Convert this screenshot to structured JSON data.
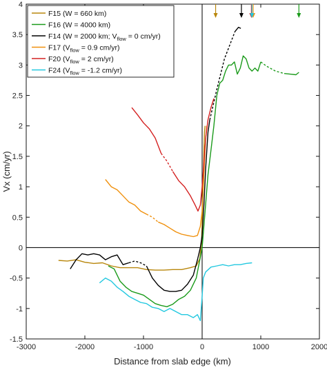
{
  "chart_data": {
    "type": "line",
    "title": "",
    "xlabel": "Distance from slab edge (km)",
    "ylabel": "Vx (cm/yr)",
    "xlim": [
      -3000,
      2000
    ],
    "ylim": [
      -1.5,
      4
    ],
    "xticks": [
      "-3000",
      "-2000",
      "-1000",
      "0",
      "1000",
      "2000"
    ],
    "yticks": [
      "-1.5",
      "-1",
      "-0.5",
      "0",
      "0.5",
      "1",
      "1.5",
      "2",
      "2.5",
      "3",
      "3.5",
      "4"
    ],
    "grid": false,
    "legend_position": "top-left",
    "series": [
      {
        "name": "F15 (W = 660 km)",
        "legend_main": "F15 (W = 660 km)",
        "legend_sub": "",
        "legend_tail": "",
        "color": "#b8860b",
        "points": [
          [
            -2450,
            -0.21
          ],
          [
            -2300,
            -0.22
          ],
          [
            -2150,
            -0.2
          ],
          [
            -2000,
            -0.24
          ],
          [
            -1850,
            -0.26
          ],
          [
            -1700,
            -0.25
          ],
          [
            -1550,
            -0.3
          ],
          [
            -1400,
            -0.33
          ],
          [
            -1250,
            -0.33
          ],
          [
            -1100,
            -0.33
          ],
          [
            -950,
            -0.36
          ],
          [
            -800,
            -0.37
          ],
          [
            -650,
            -0.37
          ],
          [
            -500,
            -0.36
          ],
          [
            -350,
            -0.36
          ],
          [
            -200,
            -0.33
          ],
          [
            -100,
            -0.3
          ],
          [
            -40,
            -0.18
          ],
          [
            -10,
            0.1
          ],
          [
            0,
            0.4
          ],
          [
            10,
            0.8
          ],
          [
            20,
            1.2
          ],
          [
            30,
            1.6
          ],
          [
            40,
            1.9
          ],
          [
            50,
            2.0
          ]
        ],
        "arrow_x": 230
      },
      {
        "name": "F16 (W = 4000 km)",
        "legend_main": "F16 (W = 4000 km)",
        "legend_sub": "",
        "legend_tail": "",
        "color": "#1a9a1a",
        "points": [
          [
            -1600,
            -0.3
          ],
          [
            -1500,
            -0.35
          ],
          [
            -1400,
            -0.55
          ],
          [
            -1300,
            -0.65
          ],
          [
            -1200,
            -0.72
          ],
          [
            -1100,
            -0.75
          ],
          [
            -1000,
            -0.78
          ],
          [
            -900,
            -0.85
          ],
          [
            -800,
            -0.92
          ],
          [
            -700,
            -0.95
          ],
          [
            -600,
            -0.97
          ],
          [
            -500,
            -0.93
          ],
          [
            -400,
            -0.85
          ],
          [
            -300,
            -0.8
          ],
          [
            -200,
            -0.7
          ],
          [
            -100,
            -0.5
          ],
          [
            -50,
            -0.25
          ],
          [
            0,
            0
          ],
          [
            50,
            0.6
          ],
          [
            100,
            1.2
          ],
          [
            150,
            1.6
          ],
          [
            200,
            2.0
          ],
          [
            250,
            2.5
          ],
          [
            300,
            2.7
          ],
          [
            350,
            2.75
          ],
          [
            400,
            2.9
          ],
          [
            450,
            3.0
          ],
          [
            500,
            3.0
          ],
          [
            550,
            3.05
          ],
          [
            600,
            2.85
          ],
          [
            650,
            2.95
          ],
          [
            700,
            3.15
          ],
          [
            750,
            3.1
          ],
          [
            800,
            2.95
          ],
          [
            850,
            2.9
          ],
          [
            900,
            2.95
          ],
          [
            950,
            2.9
          ],
          [
            1000,
            3.05
          ]
        ],
        "dashed": [
          [
            1000,
            3.05
          ],
          [
            1100,
            2.98
          ],
          [
            1250,
            2.9
          ],
          [
            1400,
            2.86
          ]
        ],
        "tail": [
          [
            1400,
            2.86
          ],
          [
            1500,
            2.85
          ],
          [
            1600,
            2.84
          ],
          [
            1650,
            2.88
          ]
        ],
        "arrow_x": 1650
      },
      {
        "name": "F14",
        "legend_main": "F14 (W = 2000 km; V",
        "legend_sub": "flow",
        "legend_tail": " = 0 cm/yr)",
        "color": "#000000",
        "points": [
          [
            -2250,
            -0.35
          ],
          [
            -2150,
            -0.2
          ],
          [
            -2050,
            -0.1
          ],
          [
            -1950,
            -0.12
          ],
          [
            -1850,
            -0.1
          ],
          [
            -1750,
            -0.12
          ],
          [
            -1650,
            -0.2
          ],
          [
            -1550,
            -0.15
          ],
          [
            -1450,
            -0.12
          ],
          [
            -1350,
            -0.28
          ],
          [
            -1250,
            -0.25
          ]
        ],
        "dashed": [
          [
            -1250,
            -0.25
          ],
          [
            -1150,
            -0.22
          ],
          [
            -1050,
            -0.25
          ],
          [
            -950,
            -0.3
          ]
        ],
        "tail": [
          [
            -950,
            -0.3
          ],
          [
            -850,
            -0.5
          ],
          [
            -750,
            -0.62
          ],
          [
            -650,
            -0.7
          ],
          [
            -550,
            -0.72
          ],
          [
            -450,
            -0.72
          ],
          [
            -350,
            -0.7
          ],
          [
            -250,
            -0.6
          ],
          [
            -150,
            -0.45
          ],
          [
            -80,
            -0.2
          ],
          [
            -30,
            0
          ],
          [
            0,
            0.2
          ],
          [
            30,
            0.7
          ],
          [
            60,
            1.3
          ],
          [
            100,
            1.9
          ],
          [
            130,
            2.1
          ]
        ],
        "extra_dashed": [
          [
            130,
            2.1
          ],
          [
            250,
            2.6
          ],
          [
            380,
            3.1
          ],
          [
            500,
            3.4
          ],
          [
            560,
            3.55
          ]
        ],
        "extra_tail": [
          [
            560,
            3.55
          ],
          [
            620,
            3.62
          ],
          [
            660,
            3.6
          ]
        ],
        "arrow_x": 670
      },
      {
        "name": "F17",
        "legend_main": "F17 (V",
        "legend_sub": "flow",
        "legend_tail": " = 0.9 cm/yr)",
        "color": "#f0900c",
        "points": [
          [
            -1650,
            1.12
          ],
          [
            -1550,
            1.0
          ],
          [
            -1450,
            0.95
          ],
          [
            -1350,
            0.85
          ],
          [
            -1250,
            0.75
          ],
          [
            -1150,
            0.7
          ],
          [
            -1050,
            0.6
          ],
          [
            -950,
            0.55
          ]
        ],
        "dashed": [
          [
            -950,
            0.55
          ],
          [
            -850,
            0.5
          ],
          [
            -750,
            0.42
          ]
        ],
        "tail": [
          [
            -750,
            0.42
          ],
          [
            -650,
            0.38
          ],
          [
            -550,
            0.32
          ],
          [
            -450,
            0.26
          ],
          [
            -350,
            0.22
          ],
          [
            -250,
            0.2
          ],
          [
            -150,
            0.18
          ],
          [
            -80,
            0.2
          ],
          [
            -30,
            0.35
          ],
          [
            0,
            0.6
          ],
          [
            20,
            1.0
          ],
          [
            40,
            1.4
          ],
          [
            60,
            1.8
          ],
          [
            80,
            2.0
          ]
        ],
        "arrow_x": 870
      },
      {
        "name": "F20",
        "legend_main": "F20 (V",
        "legend_sub": "flow",
        "legend_tail": " = 2 cm/yr)",
        "color": "#d42020",
        "points": [
          [
            -1200,
            2.3
          ],
          [
            -1100,
            2.18
          ],
          [
            -1000,
            2.05
          ],
          [
            -900,
            1.95
          ],
          [
            -800,
            1.8
          ],
          [
            -700,
            1.55
          ]
        ],
        "dashed": [
          [
            -700,
            1.55
          ],
          [
            -600,
            1.42
          ],
          [
            -500,
            1.25
          ]
        ],
        "tail": [
          [
            -500,
            1.25
          ],
          [
            -400,
            1.1
          ],
          [
            -300,
            1.0
          ],
          [
            -200,
            0.85
          ],
          [
            -120,
            0.7
          ],
          [
            -70,
            0.6
          ],
          [
            -30,
            0.7
          ],
          [
            0,
            1.0
          ],
          [
            30,
            1.4
          ],
          [
            60,
            1.8
          ],
          [
            100,
            2.1
          ],
          [
            150,
            2.3
          ],
          [
            200,
            2.45
          ]
        ],
        "arrow_x": 840
      },
      {
        "name": "F24",
        "legend_main": "F24 (V",
        "legend_sub": "flow",
        "legend_tail": " = -1.2 cm/yr)",
        "color": "#22c8e0",
        "points": [
          [
            -1750,
            -0.58
          ],
          [
            -1650,
            -0.5
          ],
          [
            -1550,
            -0.55
          ],
          [
            -1450,
            -0.65
          ],
          [
            -1350,
            -0.72
          ],
          [
            -1250,
            -0.8
          ],
          [
            -1150,
            -0.85
          ],
          [
            -1050,
            -0.9
          ],
          [
            -950,
            -0.92
          ],
          [
            -850,
            -0.98
          ],
          [
            -750,
            -1.0
          ],
          [
            -650,
            -1.05
          ],
          [
            -550,
            -1.0
          ],
          [
            -450,
            -1.05
          ],
          [
            -350,
            -1.1
          ],
          [
            -250,
            -1.1
          ],
          [
            -150,
            -1.15
          ],
          [
            -80,
            -1.1
          ],
          [
            -30,
            -1.2
          ],
          [
            0,
            -0.8
          ],
          [
            20,
            -0.5
          ],
          [
            60,
            -0.4
          ],
          [
            150,
            -0.32
          ],
          [
            250,
            -0.3
          ],
          [
            350,
            -0.28
          ],
          [
            450,
            -0.3
          ],
          [
            550,
            -0.28
          ],
          [
            650,
            -0.28
          ],
          [
            750,
            -0.26
          ],
          [
            850,
            -0.25
          ]
        ],
        "arrow_x": 850
      }
    ]
  }
}
